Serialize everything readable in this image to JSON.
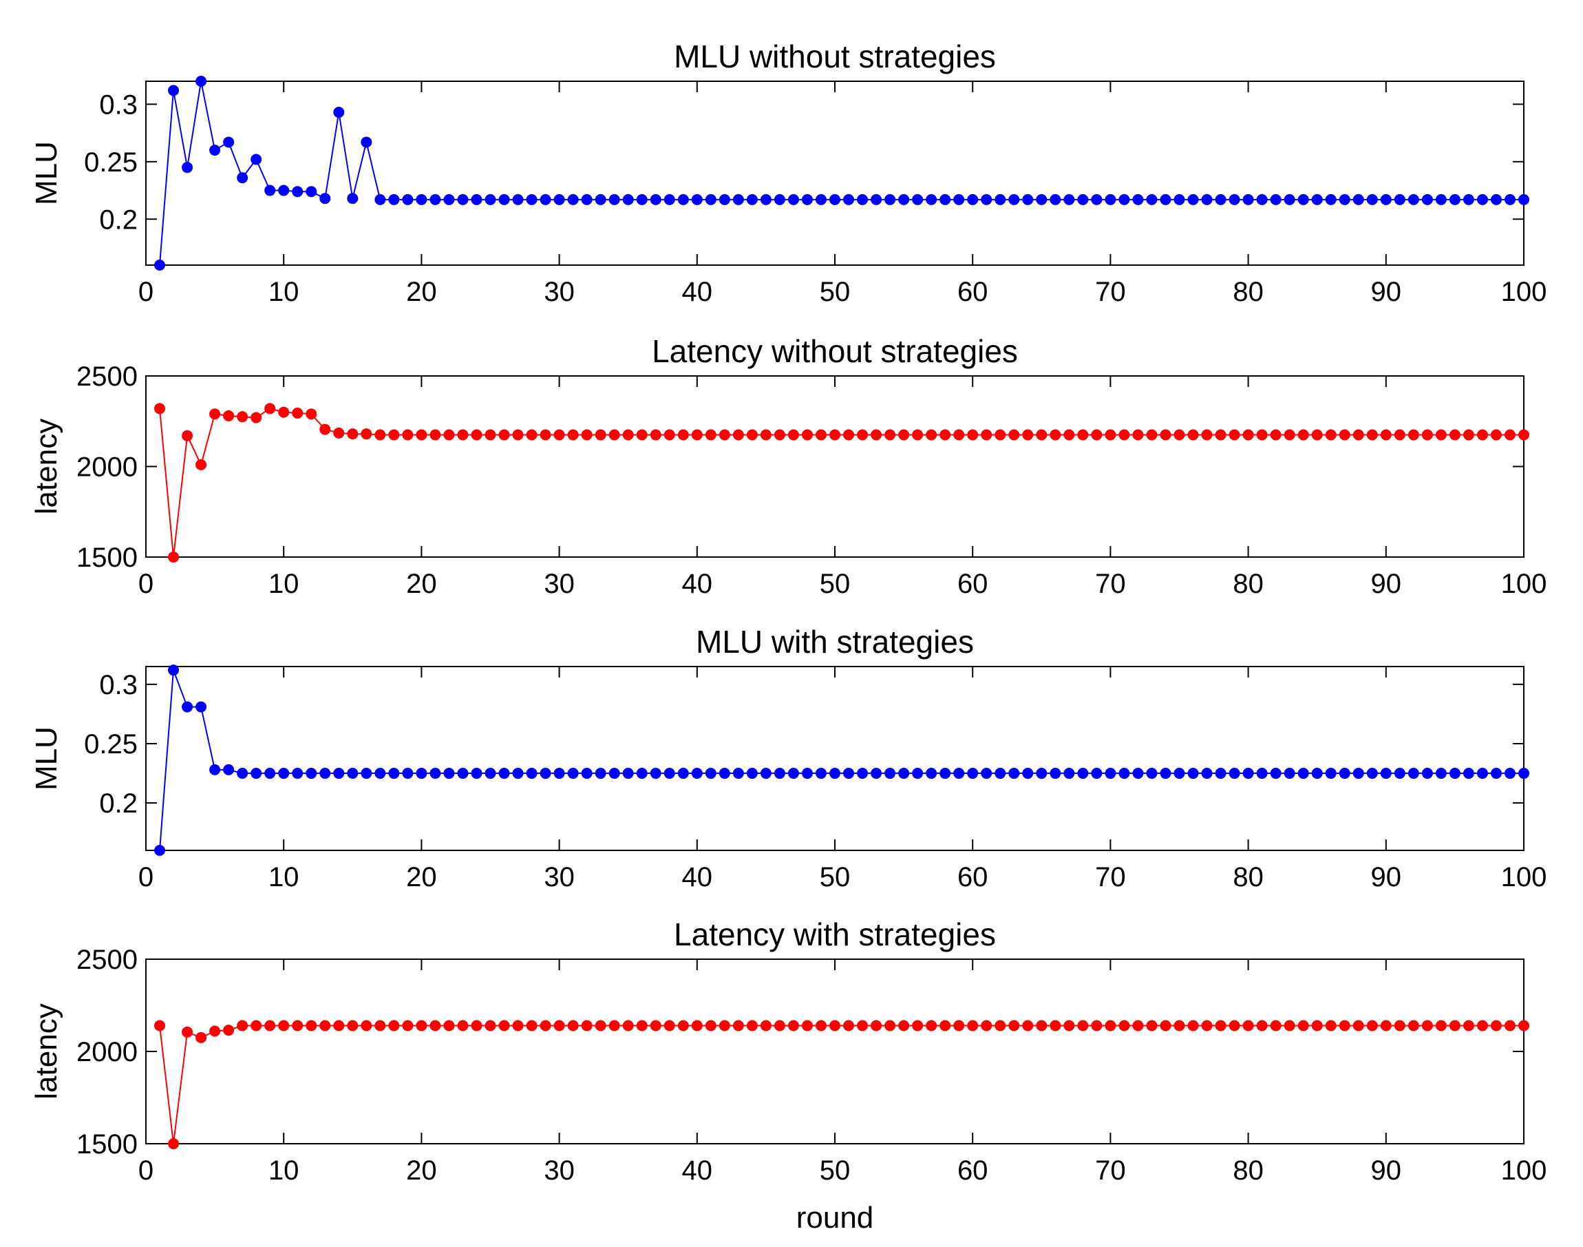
{
  "chart_data": [
    {
      "type": "line",
      "title": "MLU without strategies",
      "xlabel": "",
      "ylabel": "MLU",
      "xlim": [
        0,
        100
      ],
      "ylim": [
        0.16,
        0.32
      ],
      "xticks": [
        0,
        10,
        20,
        30,
        40,
        50,
        60,
        70,
        80,
        90,
        100
      ],
      "yticks": [
        0.2,
        0.25,
        0.3
      ],
      "ytick_labels": [
        "0.2",
        "0.25",
        "0.3"
      ],
      "series": [
        {
          "color": "#0000ff",
          "marker": "circle",
          "x": [
            1,
            2,
            3,
            4,
            5,
            6,
            7,
            8,
            9,
            10,
            11,
            12,
            13,
            14,
            15,
            16,
            17,
            18,
            19,
            20,
            21,
            22,
            23,
            24,
            25,
            26,
            27,
            28,
            29,
            30,
            31,
            32,
            33,
            34,
            35,
            36,
            37,
            38,
            39,
            40,
            41,
            42,
            43,
            44,
            45,
            46,
            47,
            48,
            49,
            50,
            51,
            52,
            53,
            54,
            55,
            56,
            57,
            58,
            59,
            60,
            61,
            62,
            63,
            64,
            65,
            66,
            67,
            68,
            69,
            70,
            71,
            72,
            73,
            74,
            75,
            76,
            77,
            78,
            79,
            80,
            81,
            82,
            83,
            84,
            85,
            86,
            87,
            88,
            89,
            90,
            91,
            92,
            93,
            94,
            95,
            96,
            97,
            98,
            99,
            100
          ],
          "y": [
            0.16,
            0.312,
            0.245,
            0.32,
            0.26,
            0.267,
            0.236,
            0.252,
            0.225,
            0.225,
            0.224,
            0.224,
            0.218,
            0.293,
            0.218,
            0.267,
            0.217,
            0.217,
            0.217,
            0.217,
            0.217,
            0.217,
            0.217,
            0.217,
            0.217,
            0.217,
            0.217,
            0.217,
            0.217,
            0.217,
            0.217,
            0.217,
            0.217,
            0.217,
            0.217,
            0.217,
            0.217,
            0.217,
            0.217,
            0.217,
            0.217,
            0.217,
            0.217,
            0.217,
            0.217,
            0.217,
            0.217,
            0.217,
            0.217,
            0.217,
            0.217,
            0.217,
            0.217,
            0.217,
            0.217,
            0.217,
            0.217,
            0.217,
            0.217,
            0.217,
            0.217,
            0.217,
            0.217,
            0.217,
            0.217,
            0.217,
            0.217,
            0.217,
            0.217,
            0.217,
            0.217,
            0.217,
            0.217,
            0.217,
            0.217,
            0.217,
            0.217,
            0.217,
            0.217,
            0.217,
            0.217,
            0.217,
            0.217,
            0.217,
            0.217,
            0.217,
            0.217,
            0.217,
            0.217,
            0.217,
            0.217,
            0.217,
            0.217,
            0.217,
            0.217,
            0.217,
            0.217,
            0.217,
            0.217,
            0.217
          ]
        }
      ]
    },
    {
      "type": "line",
      "title": "Latency without strategies",
      "xlabel": "",
      "ylabel": "latency",
      "xlim": [
        0,
        100
      ],
      "ylim": [
        1500,
        2500
      ],
      "xticks": [
        0,
        10,
        20,
        30,
        40,
        50,
        60,
        70,
        80,
        90,
        100
      ],
      "yticks": [
        1500,
        2000,
        2500
      ],
      "ytick_labels": [
        "1500",
        "2000",
        "2500"
      ],
      "series": [
        {
          "color": "#ff0000",
          "marker": "circle",
          "x": [
            1,
            2,
            3,
            4,
            5,
            6,
            7,
            8,
            9,
            10,
            11,
            12,
            13,
            14,
            15,
            16,
            17,
            18,
            19,
            20,
            21,
            22,
            23,
            24,
            25,
            26,
            27,
            28,
            29,
            30,
            31,
            32,
            33,
            34,
            35,
            36,
            37,
            38,
            39,
            40,
            41,
            42,
            43,
            44,
            45,
            46,
            47,
            48,
            49,
            50,
            51,
            52,
            53,
            54,
            55,
            56,
            57,
            58,
            59,
            60,
            61,
            62,
            63,
            64,
            65,
            66,
            67,
            68,
            69,
            70,
            71,
            72,
            73,
            74,
            75,
            76,
            77,
            78,
            79,
            80,
            81,
            82,
            83,
            84,
            85,
            86,
            87,
            88,
            89,
            90,
            91,
            92,
            93,
            94,
            95,
            96,
            97,
            98,
            99,
            100
          ],
          "y": [
            2320,
            1500,
            2170,
            2010,
            2290,
            2280,
            2275,
            2270,
            2320,
            2300,
            2295,
            2290,
            2205,
            2185,
            2180,
            2180,
            2175,
            2175,
            2175,
            2175,
            2175,
            2175,
            2175,
            2175,
            2175,
            2175,
            2175,
            2175,
            2175,
            2175,
            2175,
            2175,
            2175,
            2175,
            2175,
            2175,
            2175,
            2175,
            2175,
            2175,
            2175,
            2175,
            2175,
            2175,
            2175,
            2175,
            2175,
            2175,
            2175,
            2175,
            2175,
            2175,
            2175,
            2175,
            2175,
            2175,
            2175,
            2175,
            2175,
            2175,
            2175,
            2175,
            2175,
            2175,
            2175,
            2175,
            2175,
            2175,
            2175,
            2175,
            2175,
            2175,
            2175,
            2175,
            2175,
            2175,
            2175,
            2175,
            2175,
            2175,
            2175,
            2175,
            2175,
            2175,
            2175,
            2175,
            2175,
            2175,
            2175,
            2175,
            2175,
            2175,
            2175,
            2175,
            2175,
            2175,
            2175,
            2175,
            2175,
            2175
          ]
        }
      ]
    },
    {
      "type": "line",
      "title": "MLU with strategies",
      "xlabel": "",
      "ylabel": "MLU",
      "xlim": [
        0,
        100
      ],
      "ylim": [
        0.16,
        0.315
      ],
      "xticks": [
        0,
        10,
        20,
        30,
        40,
        50,
        60,
        70,
        80,
        90,
        100
      ],
      "yticks": [
        0.2,
        0.25,
        0.3
      ],
      "ytick_labels": [
        "0.2",
        "0.25",
        "0.3"
      ],
      "series": [
        {
          "color": "#0000ff",
          "marker": "circle",
          "x": [
            1,
            2,
            3,
            4,
            5,
            6,
            7,
            8,
            9,
            10,
            11,
            12,
            13,
            14,
            15,
            16,
            17,
            18,
            19,
            20,
            21,
            22,
            23,
            24,
            25,
            26,
            27,
            28,
            29,
            30,
            31,
            32,
            33,
            34,
            35,
            36,
            37,
            38,
            39,
            40,
            41,
            42,
            43,
            44,
            45,
            46,
            47,
            48,
            49,
            50,
            51,
            52,
            53,
            54,
            55,
            56,
            57,
            58,
            59,
            60,
            61,
            62,
            63,
            64,
            65,
            66,
            67,
            68,
            69,
            70,
            71,
            72,
            73,
            74,
            75,
            76,
            77,
            78,
            79,
            80,
            81,
            82,
            83,
            84,
            85,
            86,
            87,
            88,
            89,
            90,
            91,
            92,
            93,
            94,
            95,
            96,
            97,
            98,
            99,
            100
          ],
          "y": [
            0.16,
            0.312,
            0.281,
            0.281,
            0.228,
            0.228,
            0.225,
            0.225,
            0.225,
            0.225,
            0.225,
            0.225,
            0.225,
            0.225,
            0.225,
            0.225,
            0.225,
            0.225,
            0.225,
            0.225,
            0.225,
            0.225,
            0.225,
            0.225,
            0.225,
            0.225,
            0.225,
            0.225,
            0.225,
            0.225,
            0.225,
            0.225,
            0.225,
            0.225,
            0.225,
            0.225,
            0.225,
            0.225,
            0.225,
            0.225,
            0.225,
            0.225,
            0.225,
            0.225,
            0.225,
            0.225,
            0.225,
            0.225,
            0.225,
            0.225,
            0.225,
            0.225,
            0.225,
            0.225,
            0.225,
            0.225,
            0.225,
            0.225,
            0.225,
            0.225,
            0.225,
            0.225,
            0.225,
            0.225,
            0.225,
            0.225,
            0.225,
            0.225,
            0.225,
            0.225,
            0.225,
            0.225,
            0.225,
            0.225,
            0.225,
            0.225,
            0.225,
            0.225,
            0.225,
            0.225,
            0.225,
            0.225,
            0.225,
            0.225,
            0.225,
            0.225,
            0.225,
            0.225,
            0.225,
            0.225,
            0.225,
            0.225,
            0.225,
            0.225,
            0.225,
            0.225,
            0.225,
            0.225,
            0.225,
            0.225
          ]
        }
      ]
    },
    {
      "type": "line",
      "title": "Latency with strategies",
      "xlabel": "round",
      "ylabel": "latency",
      "xlim": [
        0,
        100
      ],
      "ylim": [
        1500,
        2500
      ],
      "xticks": [
        0,
        10,
        20,
        30,
        40,
        50,
        60,
        70,
        80,
        90,
        100
      ],
      "yticks": [
        1500,
        2000,
        2500
      ],
      "ytick_labels": [
        "1500",
        "2000",
        "2500"
      ],
      "series": [
        {
          "color": "#ff0000",
          "marker": "circle",
          "x": [
            1,
            2,
            3,
            4,
            5,
            6,
            7,
            8,
            9,
            10,
            11,
            12,
            13,
            14,
            15,
            16,
            17,
            18,
            19,
            20,
            21,
            22,
            23,
            24,
            25,
            26,
            27,
            28,
            29,
            30,
            31,
            32,
            33,
            34,
            35,
            36,
            37,
            38,
            39,
            40,
            41,
            42,
            43,
            44,
            45,
            46,
            47,
            48,
            49,
            50,
            51,
            52,
            53,
            54,
            55,
            56,
            57,
            58,
            59,
            60,
            61,
            62,
            63,
            64,
            65,
            66,
            67,
            68,
            69,
            70,
            71,
            72,
            73,
            74,
            75,
            76,
            77,
            78,
            79,
            80,
            81,
            82,
            83,
            84,
            85,
            86,
            87,
            88,
            89,
            90,
            91,
            92,
            93,
            94,
            95,
            96,
            97,
            98,
            99,
            100
          ],
          "y": [
            2140,
            1500,
            2105,
            2075,
            2110,
            2115,
            2140,
            2140,
            2140,
            2140,
            2140,
            2140,
            2140,
            2140,
            2140,
            2140,
            2140,
            2140,
            2140,
            2140,
            2140,
            2140,
            2140,
            2140,
            2140,
            2140,
            2140,
            2140,
            2140,
            2140,
            2140,
            2140,
            2140,
            2140,
            2140,
            2140,
            2140,
            2140,
            2140,
            2140,
            2140,
            2140,
            2140,
            2140,
            2140,
            2140,
            2140,
            2140,
            2140,
            2140,
            2140,
            2140,
            2140,
            2140,
            2140,
            2140,
            2140,
            2140,
            2140,
            2140,
            2140,
            2140,
            2140,
            2140,
            2140,
            2140,
            2140,
            2140,
            2140,
            2140,
            2140,
            2140,
            2140,
            2140,
            2140,
            2140,
            2140,
            2140,
            2140,
            2140,
            2140,
            2140,
            2140,
            2140,
            2140,
            2140,
            2140,
            2140,
            2140,
            2140,
            2140,
            2140,
            2140,
            2140,
            2140,
            2140,
            2140,
            2140,
            2140,
            2140
          ]
        }
      ]
    }
  ]
}
